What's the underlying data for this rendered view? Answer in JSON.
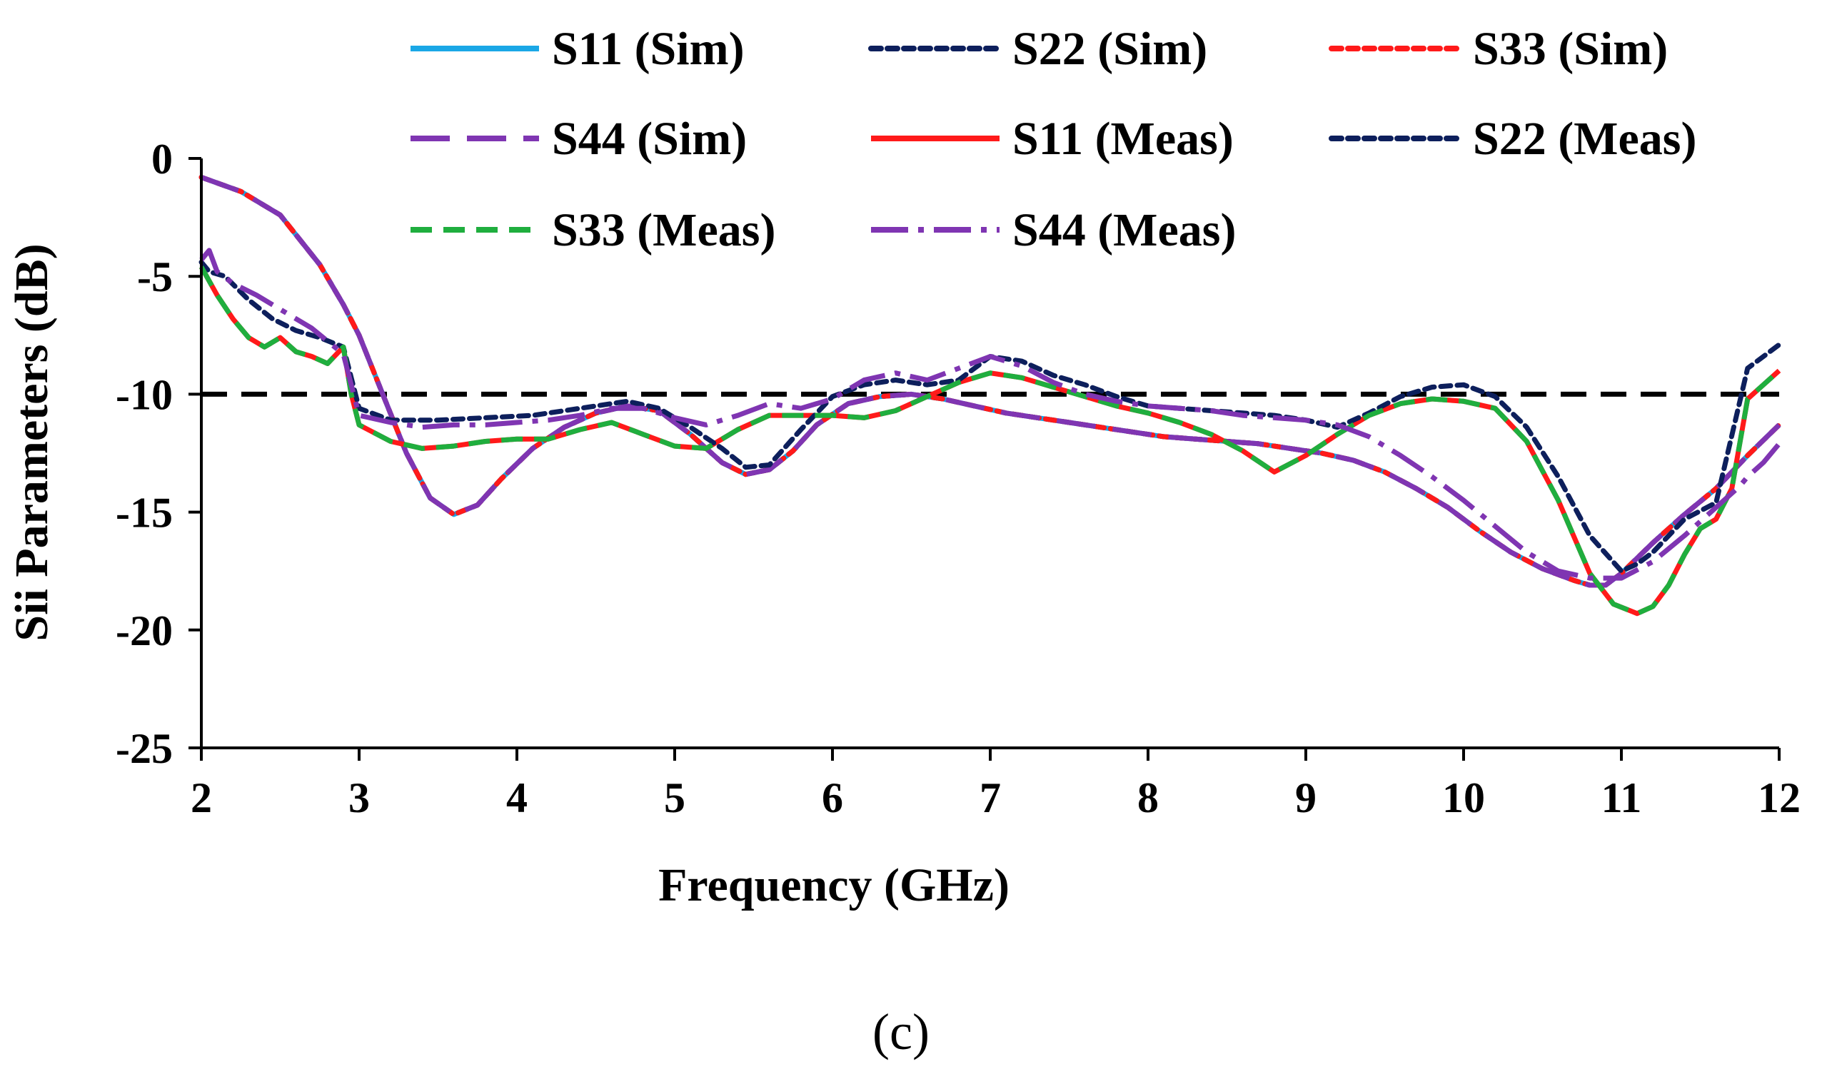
{
  "chart_data": {
    "type": "line",
    "xlabel": "Frequency (GHz)",
    "ylabel": "Sii Parameters (dB)",
    "xlim": [
      2,
      12
    ],
    "ylim": [
      -25,
      0
    ],
    "xticks": [
      2,
      3,
      4,
      5,
      6,
      7,
      8,
      9,
      10,
      11,
      12
    ],
    "yticks": [
      0,
      -5,
      -10,
      -15,
      -20,
      -25
    ],
    "xtick_labels": [
      "2",
      "3",
      "4",
      "5",
      "6",
      "7",
      "8",
      "9",
      "10",
      "11",
      "12"
    ],
    "ytick_labels": [
      "0",
      "-5",
      "-10",
      "-15",
      "-20",
      "-25"
    ],
    "caption": "(c)",
    "reference_line": {
      "y": -10,
      "color": "#000000",
      "style": "dash"
    },
    "series": [
      {
        "name": "S11 (Sim)",
        "color": "#1aa7e6",
        "style": "solid",
        "x": [
          2.0,
          2.25,
          2.5,
          2.75,
          2.9,
          3.0,
          3.15,
          3.3,
          3.45,
          3.6,
          3.75,
          3.9,
          4.1,
          4.3,
          4.5,
          4.7,
          4.9,
          5.1,
          5.3,
          5.45,
          5.6,
          5.75,
          5.9,
          6.1,
          6.3,
          6.5,
          6.7,
          6.9,
          7.1,
          7.3,
          7.5,
          7.7,
          7.9,
          8.1,
          8.3,
          8.5,
          8.7,
          8.9,
          9.1,
          9.3,
          9.5,
          9.7,
          9.9,
          10.1,
          10.3,
          10.5,
          10.7,
          10.8,
          10.9,
          11.0,
          11.2,
          11.4,
          11.6,
          11.8,
          12.0
        ],
        "values": [
          -0.8,
          -1.4,
          -2.4,
          -4.5,
          -6.2,
          -7.5,
          -10.0,
          -12.5,
          -14.4,
          -15.1,
          -14.7,
          -13.6,
          -12.3,
          -11.4,
          -10.8,
          -10.5,
          -10.7,
          -11.7,
          -12.9,
          -13.4,
          -13.2,
          -12.4,
          -11.3,
          -10.4,
          -10.1,
          -10.0,
          -10.2,
          -10.5,
          -10.8,
          -11.0,
          -11.2,
          -11.4,
          -11.6,
          -11.8,
          -11.9,
          -12.0,
          -12.1,
          -12.3,
          -12.5,
          -12.8,
          -13.3,
          -14.0,
          -14.8,
          -15.8,
          -16.7,
          -17.4,
          -17.9,
          -18.1,
          -18.1,
          -17.6,
          -16.3,
          -15.1,
          -14.0,
          -12.6,
          -11.3
        ]
      },
      {
        "name": "S22 (Sim)",
        "color": "#0d1f5c",
        "style": "dot",
        "x": [
          2.0,
          2.25,
          2.5,
          2.75,
          2.9,
          3.0,
          3.15,
          3.3,
          3.45,
          3.6,
          3.75,
          3.9,
          4.1,
          4.3,
          4.5,
          4.7,
          4.9,
          5.1,
          5.3,
          5.45,
          5.6,
          5.75,
          5.9,
          6.1,
          6.3,
          6.5,
          6.7,
          6.9,
          7.1,
          7.3,
          7.5,
          7.7,
          7.9,
          8.1,
          8.3,
          8.5,
          8.7,
          8.9,
          9.1,
          9.3,
          9.5,
          9.7,
          9.9,
          10.1,
          10.3,
          10.5,
          10.7,
          10.8,
          10.9,
          11.0,
          11.2,
          11.4,
          11.6,
          11.8,
          12.0
        ],
        "values": [
          -0.8,
          -1.4,
          -2.4,
          -4.5,
          -6.2,
          -7.5,
          -10.0,
          -12.5,
          -14.4,
          -15.1,
          -14.7,
          -13.6,
          -12.3,
          -11.4,
          -10.8,
          -10.5,
          -10.7,
          -11.7,
          -12.9,
          -13.4,
          -13.2,
          -12.4,
          -11.3,
          -10.4,
          -10.1,
          -10.0,
          -10.2,
          -10.5,
          -10.8,
          -11.0,
          -11.2,
          -11.4,
          -11.6,
          -11.8,
          -11.9,
          -12.0,
          -12.1,
          -12.3,
          -12.5,
          -12.8,
          -13.3,
          -14.0,
          -14.8,
          -15.8,
          -16.7,
          -17.4,
          -17.9,
          -18.1,
          -18.1,
          -17.6,
          -16.3,
          -15.1,
          -14.0,
          -12.6,
          -11.3
        ]
      },
      {
        "name": "S33 (Sim)",
        "color": "#ff1a1a",
        "style": "dot",
        "x": [
          2.0,
          2.25,
          2.5,
          2.75,
          2.9,
          3.0,
          3.15,
          3.3,
          3.45,
          3.6,
          3.75,
          3.9,
          4.1,
          4.3,
          4.5,
          4.7,
          4.9,
          5.1,
          5.3,
          5.45,
          5.6,
          5.75,
          5.9,
          6.1,
          6.3,
          6.5,
          6.7,
          6.9,
          7.1,
          7.3,
          7.5,
          7.7,
          7.9,
          8.1,
          8.3,
          8.5,
          8.7,
          8.9,
          9.1,
          9.3,
          9.5,
          9.7,
          9.9,
          10.1,
          10.3,
          10.5,
          10.7,
          10.8,
          10.9,
          11.0,
          11.2,
          11.4,
          11.6,
          11.8,
          12.0
        ],
        "values": [
          -0.8,
          -1.4,
          -2.4,
          -4.5,
          -6.2,
          -7.5,
          -10.0,
          -12.5,
          -14.4,
          -15.1,
          -14.7,
          -13.6,
          -12.3,
          -11.4,
          -10.8,
          -10.5,
          -10.7,
          -11.7,
          -12.9,
          -13.4,
          -13.2,
          -12.4,
          -11.3,
          -10.4,
          -10.1,
          -10.0,
          -10.2,
          -10.5,
          -10.8,
          -11.0,
          -11.2,
          -11.4,
          -11.6,
          -11.8,
          -11.9,
          -12.0,
          -12.1,
          -12.3,
          -12.5,
          -12.8,
          -13.3,
          -14.0,
          -14.8,
          -15.8,
          -16.7,
          -17.4,
          -17.9,
          -18.1,
          -18.1,
          -17.6,
          -16.3,
          -15.1,
          -14.0,
          -12.6,
          -11.3
        ]
      },
      {
        "name": "S44 (Sim)",
        "color": "#7f35b2",
        "style": "longdash",
        "x": [
          2.0,
          2.25,
          2.5,
          2.75,
          2.9,
          3.0,
          3.15,
          3.3,
          3.45,
          3.6,
          3.75,
          3.9,
          4.1,
          4.3,
          4.5,
          4.7,
          4.9,
          5.1,
          5.3,
          5.45,
          5.6,
          5.75,
          5.9,
          6.1,
          6.3,
          6.5,
          6.7,
          6.9,
          7.1,
          7.3,
          7.5,
          7.7,
          7.9,
          8.1,
          8.3,
          8.5,
          8.7,
          8.9,
          9.1,
          9.3,
          9.5,
          9.7,
          9.9,
          10.1,
          10.3,
          10.5,
          10.7,
          10.8,
          10.9,
          11.0,
          11.2,
          11.4,
          11.6,
          11.8,
          12.0
        ],
        "values": [
          -0.8,
          -1.4,
          -2.4,
          -4.5,
          -6.2,
          -7.5,
          -10.0,
          -12.5,
          -14.4,
          -15.1,
          -14.7,
          -13.6,
          -12.3,
          -11.4,
          -10.8,
          -10.5,
          -10.7,
          -11.7,
          -12.9,
          -13.4,
          -13.2,
          -12.4,
          -11.3,
          -10.4,
          -10.1,
          -10.0,
          -10.2,
          -10.5,
          -10.8,
          -11.0,
          -11.2,
          -11.4,
          -11.6,
          -11.8,
          -11.9,
          -12.0,
          -12.1,
          -12.3,
          -12.5,
          -12.8,
          -13.3,
          -14.0,
          -14.8,
          -15.8,
          -16.7,
          -17.4,
          -17.9,
          -18.1,
          -18.1,
          -17.6,
          -16.3,
          -15.1,
          -14.0,
          -12.6,
          -11.3
        ]
      },
      {
        "name": "S11 (Meas)",
        "color": "#ff1a1a",
        "style": "solid",
        "x": [
          2.0,
          2.1,
          2.2,
          2.3,
          2.4,
          2.5,
          2.6,
          2.7,
          2.8,
          2.9,
          2.95,
          3.0,
          3.2,
          3.4,
          3.6,
          3.8,
          4.0,
          4.2,
          4.4,
          4.6,
          4.8,
          5.0,
          5.2,
          5.4,
          5.6,
          5.8,
          6.0,
          6.2,
          6.4,
          6.6,
          6.8,
          7.0,
          7.2,
          7.4,
          7.6,
          7.8,
          8.0,
          8.2,
          8.4,
          8.6,
          8.8,
          9.0,
          9.2,
          9.4,
          9.6,
          9.8,
          10.0,
          10.2,
          10.4,
          10.6,
          10.8,
          10.95,
          11.1,
          11.2,
          11.3,
          11.4,
          11.5,
          11.6,
          11.7,
          11.8,
          11.9,
          12.0
        ],
        "values": [
          -4.6,
          -5.8,
          -6.8,
          -7.6,
          -8.0,
          -7.6,
          -8.2,
          -8.4,
          -8.7,
          -8.0,
          -10.0,
          -11.3,
          -12.0,
          -12.3,
          -12.2,
          -12.0,
          -11.9,
          -11.9,
          -11.5,
          -11.2,
          -11.7,
          -12.2,
          -12.3,
          -11.5,
          -10.9,
          -10.9,
          -10.9,
          -11.0,
          -10.7,
          -10.1,
          -9.5,
          -9.1,
          -9.3,
          -9.7,
          -10.1,
          -10.5,
          -10.8,
          -11.2,
          -11.7,
          -12.4,
          -13.3,
          -12.6,
          -11.7,
          -10.9,
          -10.4,
          -10.2,
          -10.3,
          -10.6,
          -12.0,
          -14.5,
          -17.6,
          -18.9,
          -19.3,
          -19.0,
          -18.1,
          -16.8,
          -15.7,
          -15.3,
          -14.0,
          -10.2,
          -9.6,
          -9.0
        ]
      },
      {
        "name": "S22 (Meas)",
        "color": "#0d1f5c",
        "style": "dot",
        "x": [
          2.0,
          2.05,
          2.15,
          2.3,
          2.45,
          2.6,
          2.75,
          2.9,
          3.0,
          3.2,
          3.5,
          3.8,
          4.1,
          4.4,
          4.7,
          4.9,
          5.1,
          5.3,
          5.45,
          5.6,
          5.8,
          6.0,
          6.2,
          6.4,
          6.6,
          6.8,
          7.0,
          7.2,
          7.4,
          7.6,
          7.8,
          8.0,
          8.2,
          8.4,
          8.6,
          8.8,
          9.0,
          9.2,
          9.4,
          9.6,
          9.8,
          10.0,
          10.2,
          10.4,
          10.6,
          10.8,
          11.0,
          11.1,
          11.2,
          11.4,
          11.6,
          11.8,
          12.0
        ],
        "values": [
          -4.4,
          -4.8,
          -5.0,
          -6.0,
          -6.8,
          -7.3,
          -7.6,
          -8.0,
          -10.6,
          -11.1,
          -11.1,
          -11.0,
          -10.9,
          -10.6,
          -10.3,
          -10.6,
          -11.4,
          -12.3,
          -13.1,
          -13.0,
          -11.5,
          -10.1,
          -9.6,
          -9.4,
          -9.6,
          -9.4,
          -8.4,
          -8.6,
          -9.2,
          -9.6,
          -10.1,
          -10.5,
          -10.6,
          -10.7,
          -10.8,
          -10.9,
          -11.1,
          -11.4,
          -10.8,
          -10.1,
          -9.7,
          -9.6,
          -10.1,
          -11.4,
          -13.5,
          -16.0,
          -17.5,
          -17.2,
          -16.7,
          -15.3,
          -14.6,
          -8.9,
          -7.9
        ]
      },
      {
        "name": "S33 (Meas)",
        "color": "#1fae3e",
        "style": "dash",
        "x": [
          2.0,
          2.1,
          2.2,
          2.3,
          2.4,
          2.5,
          2.6,
          2.7,
          2.8,
          2.9,
          2.95,
          3.0,
          3.2,
          3.4,
          3.6,
          3.8,
          4.0,
          4.2,
          4.4,
          4.6,
          4.8,
          5.0,
          5.2,
          5.4,
          5.6,
          5.8,
          6.0,
          6.2,
          6.4,
          6.6,
          6.8,
          7.0,
          7.2,
          7.4,
          7.6,
          7.8,
          8.0,
          8.2,
          8.4,
          8.6,
          8.8,
          9.0,
          9.2,
          9.4,
          9.6,
          9.8,
          10.0,
          10.2,
          10.4,
          10.6,
          10.8,
          10.95,
          11.1,
          11.2,
          11.3,
          11.4,
          11.5,
          11.6,
          11.7,
          11.8,
          11.9,
          12.0
        ],
        "values": [
          -4.6,
          -5.8,
          -6.8,
          -7.6,
          -8.0,
          -7.6,
          -8.2,
          -8.4,
          -8.7,
          -8.0,
          -10.0,
          -11.3,
          -12.0,
          -12.3,
          -12.2,
          -12.0,
          -11.9,
          -11.9,
          -11.5,
          -11.2,
          -11.7,
          -12.2,
          -12.3,
          -11.5,
          -10.9,
          -10.9,
          -10.9,
          -11.0,
          -10.7,
          -10.1,
          -9.5,
          -9.1,
          -9.3,
          -9.7,
          -10.1,
          -10.5,
          -10.8,
          -11.2,
          -11.7,
          -12.4,
          -13.3,
          -12.6,
          -11.7,
          -10.9,
          -10.4,
          -10.2,
          -10.3,
          -10.6,
          -12.0,
          -14.5,
          -17.6,
          -18.9,
          -19.3,
          -19.0,
          -18.1,
          -16.8,
          -15.7,
          -15.3,
          -14.0,
          -10.2,
          -9.6,
          -9.0
        ]
      },
      {
        "name": "S44 (Meas)",
        "color": "#7f35b2",
        "style": "dashdot",
        "x": [
          2.0,
          2.05,
          2.1,
          2.2,
          2.35,
          2.5,
          2.7,
          2.9,
          3.0,
          3.2,
          3.4,
          3.6,
          3.8,
          4.0,
          4.2,
          4.4,
          4.6,
          4.8,
          5.0,
          5.2,
          5.4,
          5.6,
          5.8,
          6.0,
          6.2,
          6.4,
          6.6,
          6.8,
          7.0,
          7.2,
          7.4,
          7.6,
          7.8,
          8.0,
          8.2,
          8.4,
          8.6,
          8.8,
          9.0,
          9.2,
          9.4,
          9.6,
          9.8,
          10.0,
          10.2,
          10.4,
          10.6,
          10.8,
          11.0,
          11.2,
          11.4,
          11.6,
          11.75,
          11.8,
          11.9,
          12.0
        ],
        "values": [
          -4.3,
          -3.9,
          -4.8,
          -5.3,
          -5.8,
          -6.4,
          -7.2,
          -8.3,
          -10.9,
          -11.2,
          -11.4,
          -11.3,
          -11.3,
          -11.2,
          -11.1,
          -10.9,
          -10.6,
          -10.6,
          -11.0,
          -11.3,
          -10.9,
          -10.4,
          -10.6,
          -10.2,
          -9.4,
          -9.1,
          -9.4,
          -8.9,
          -8.4,
          -8.8,
          -9.5,
          -10.0,
          -10.3,
          -10.5,
          -10.6,
          -10.7,
          -10.9,
          -11.0,
          -11.1,
          -11.3,
          -11.8,
          -12.6,
          -13.5,
          -14.5,
          -15.6,
          -16.7,
          -17.5,
          -17.8,
          -17.8,
          -17.1,
          -16.0,
          -14.8,
          -13.9,
          -13.5,
          -12.9,
          -12.1
        ]
      }
    ]
  }
}
